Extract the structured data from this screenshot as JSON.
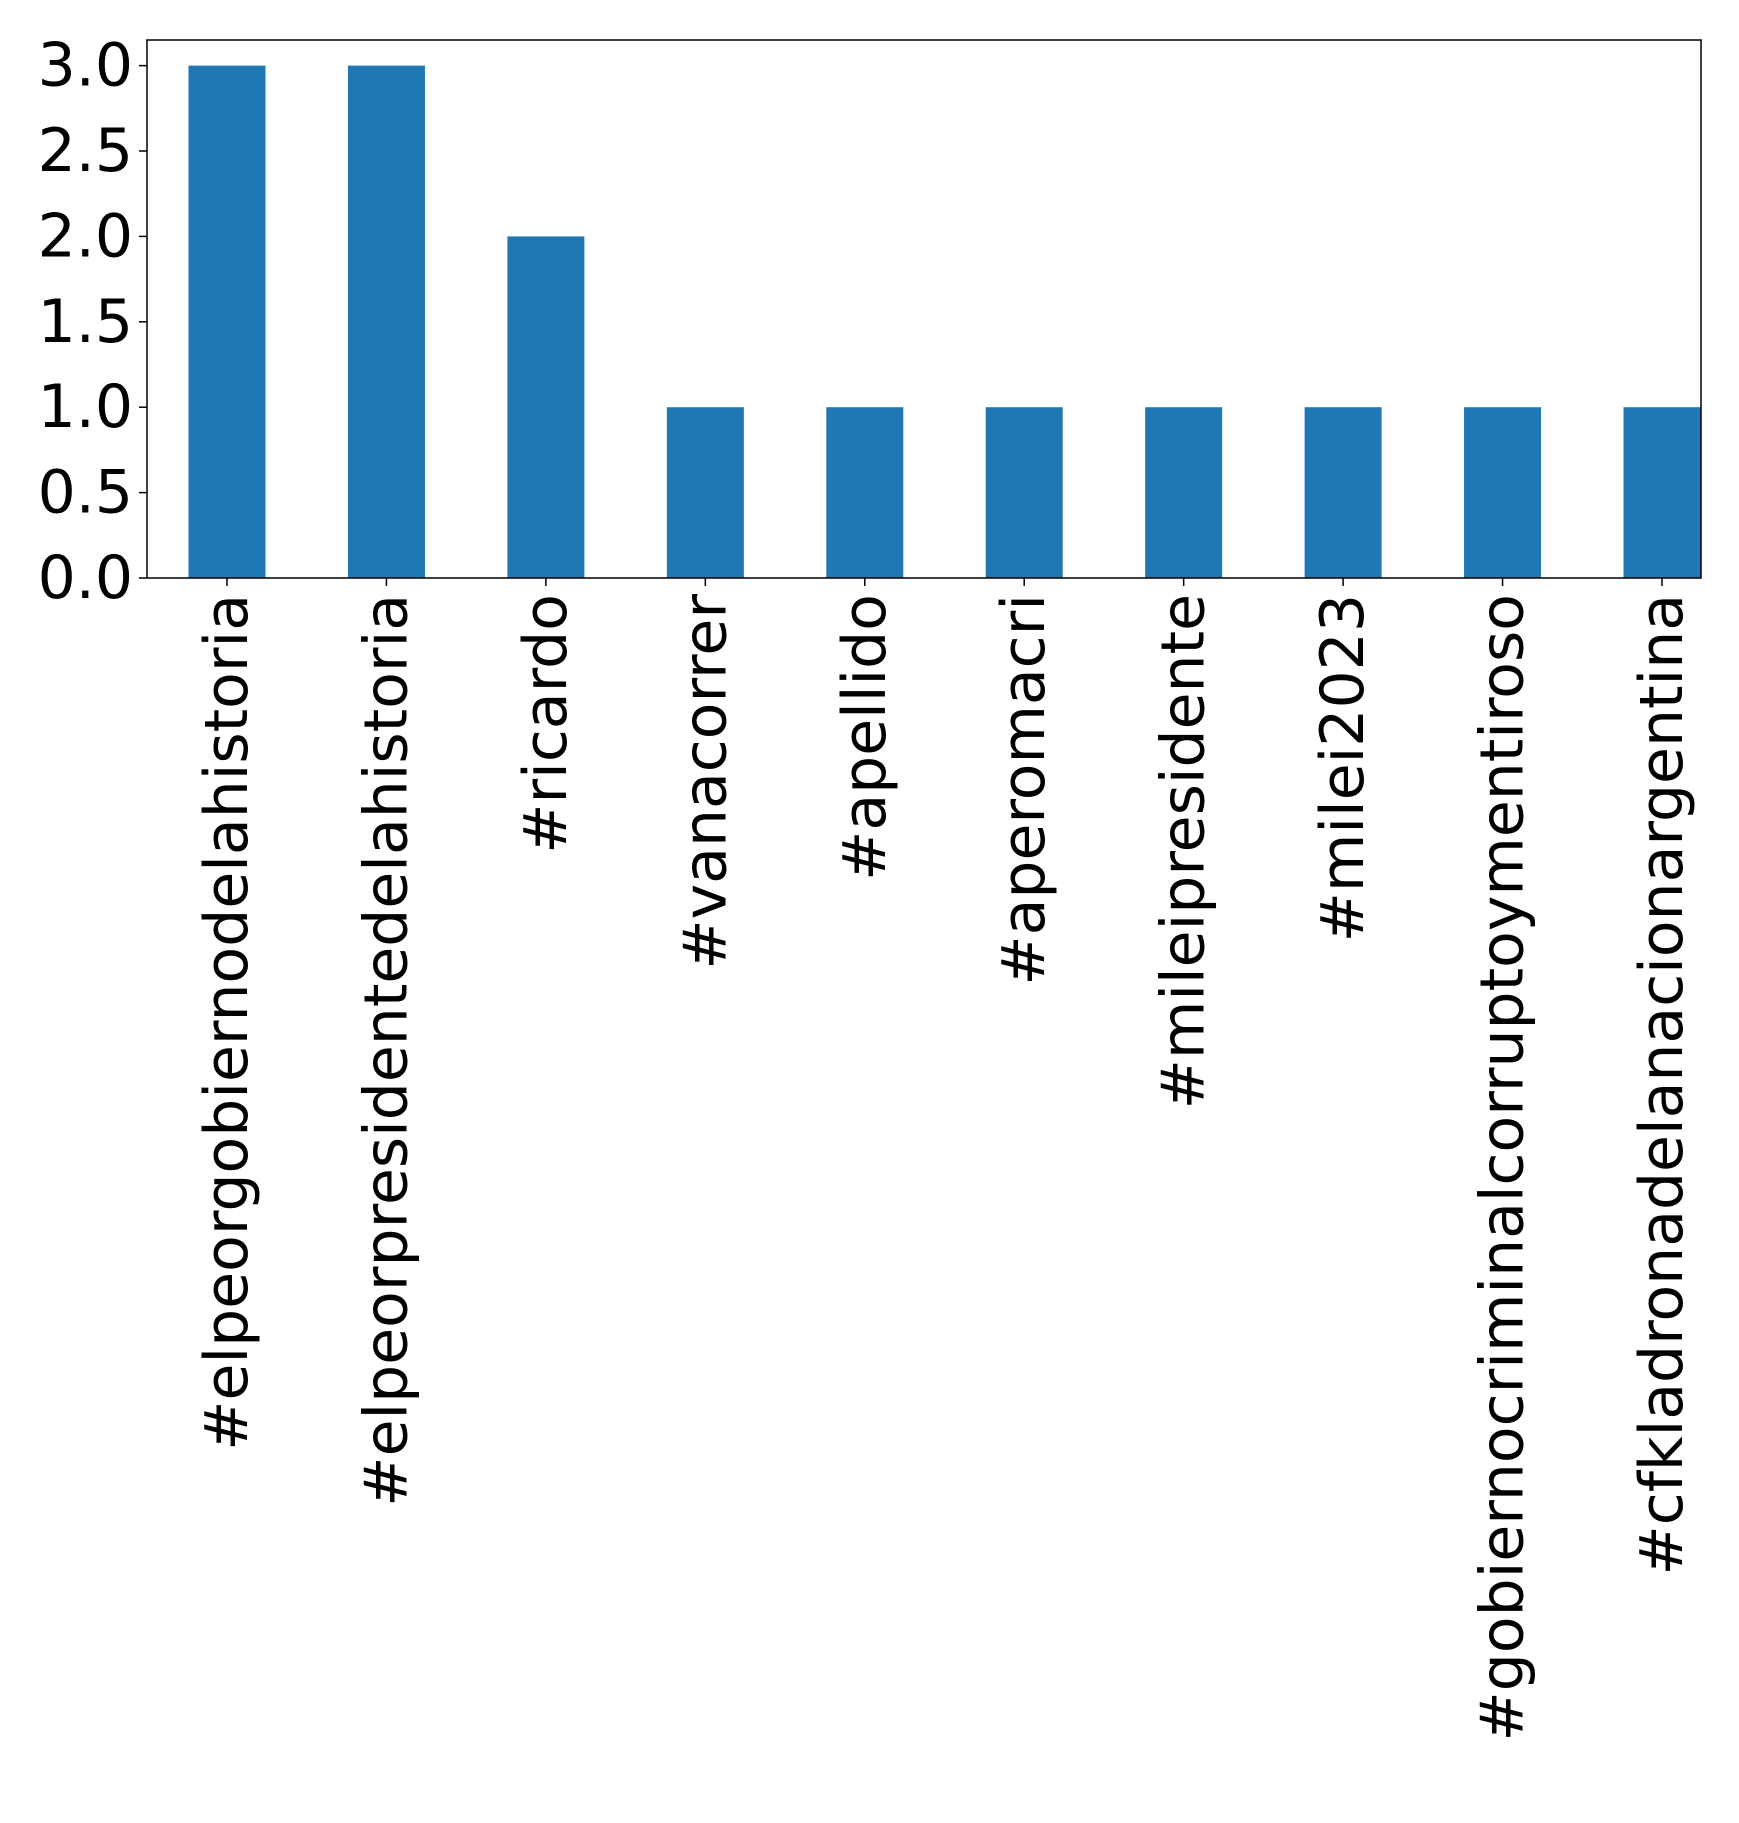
{
  "chart_data": {
    "type": "bar",
    "title": "",
    "xlabel": "",
    "ylabel": "",
    "categories": [
      "#elpeorgobiernodelahistoria",
      "#elpeorpresidentedelahistoria",
      "#ricardo",
      "#vanacorrer",
      "#apellido",
      "#aperomacri",
      "#mileipresidente",
      "#milei2023",
      "#gobiernocriminalcorruptoymentiroso",
      "#cfkladronadelanacionargentina"
    ],
    "values": [
      3,
      3,
      2,
      1,
      1,
      1,
      1,
      1,
      1,
      1
    ],
    "ylim": [
      0,
      3.15
    ],
    "yticks": [
      "0.0",
      "0.5",
      "1.0",
      "1.5",
      "2.0",
      "2.5",
      "3.0"
    ],
    "bar_color": "#1f77b4",
    "grid": false,
    "legend": "none"
  }
}
